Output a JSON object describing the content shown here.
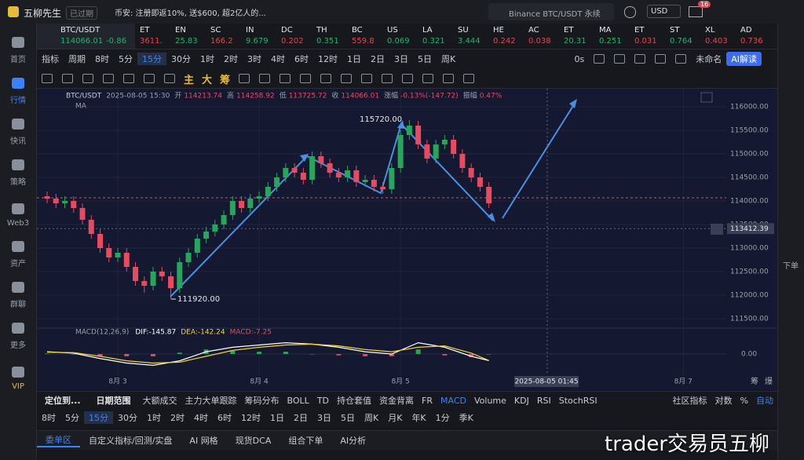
{
  "top_bar": {
    "app_name": "五柳先生",
    "status": "已过期",
    "news": "币安: 注册即返10%, 送$600, 超2亿人的...",
    "search": "Binance BTC/USDT 永续",
    "currency": "USD",
    "badge": "16"
  },
  "sidebar": [
    "首页",
    "行情",
    "快讯",
    "策略",
    "Web3",
    "资产",
    "群聊",
    "更多",
    "VIP"
  ],
  "right_sidebar": [
    "下单"
  ],
  "tickers": [
    {
      "name": "BTC/USDT",
      "price": "114066.01",
      "change": "-0.86",
      "color": "#25b26a"
    },
    {
      "name": "ET",
      "price": "3611.",
      "color": "#e0474c"
    },
    {
      "name": "EN",
      "price": "25.83",
      "color": "#25b26a"
    },
    {
      "name": "SC",
      "price": "166.2",
      "color": "#e0474c"
    },
    {
      "name": "IN",
      "price": "9.679",
      "color": "#25b26a"
    },
    {
      "name": "DC",
      "price": "0.202",
      "color": "#e0474c"
    },
    {
      "name": "TH",
      "price": "0.351",
      "color": "#25b26a"
    },
    {
      "name": "BC",
      "price": "559.8",
      "color": "#e0474c"
    },
    {
      "name": "US",
      "price": "0.069",
      "color": "#25b26a"
    },
    {
      "name": "LA",
      "price": "0.321",
      "color": "#25b26a"
    },
    {
      "name": "SU",
      "price": "3.444",
      "color": "#25b26a"
    },
    {
      "name": "HE",
      "price": "0.242",
      "color": "#e0474c"
    },
    {
      "name": "AC",
      "price": "0.038",
      "color": "#e0474c"
    },
    {
      "name": "ET",
      "price": "20.31",
      "color": "#25b26a"
    },
    {
      "name": "MA",
      "price": "0.251",
      "color": "#25b26a"
    },
    {
      "name": "ET",
      "price": "0.031",
      "color": "#e0474c"
    },
    {
      "name": "ST",
      "price": "0.764",
      "color": "#25b26a"
    },
    {
      "name": "XL",
      "price": "0.403",
      "color": "#e0474c"
    },
    {
      "name": "AD",
      "price": "0.736",
      "color": "#e0474c"
    }
  ],
  "toolbar": {
    "items": [
      "指标",
      "周期",
      "8时",
      "5分",
      "15分",
      "30分",
      "1时",
      "2时",
      "3时",
      "4时",
      "6时",
      "12时",
      "1日",
      "2日",
      "3日",
      "5日",
      "周K"
    ],
    "timer": "0s",
    "layout_name": "未命名",
    "ai": "AI解读"
  },
  "draw_tools": [
    "主",
    "大",
    "筹"
  ],
  "chart_data": {
    "type": "candlestick",
    "symbol": "BTC/USDT",
    "time": "2025-08-05 15:30",
    "info": [
      {
        "label": "开",
        "value": 114213.74
      },
      {
        "label": "高",
        "value": 114258.92
      },
      {
        "label": "低",
        "value": 113725.72
      },
      {
        "label": "收",
        "value": 114066.01
      }
    ],
    "change_label": "涨幅",
    "change": "-0.13%(-147.72)",
    "amplitude_label": "振幅",
    "amplitude": "0.47%",
    "ma_label": "MA",
    "up_color": "#26a65b",
    "down_color": "#e84a5f",
    "x": [
      -12,
      -10.5,
      -9,
      -7.5,
      -6,
      -4.5,
      -3,
      -1.5,
      0,
      1.5,
      3,
      4.5,
      6,
      7.5,
      9,
      10.5,
      12,
      13.5,
      15,
      16.5,
      18,
      19.5,
      21,
      22.5,
      24,
      25.5,
      27,
      28.5,
      30,
      31.5,
      33,
      34.5,
      36,
      37.5,
      39,
      40.5,
      42,
      43.5,
      45,
      46.5,
      48,
      49.5,
      51,
      52.5,
      54,
      55.5,
      57,
      58.5,
      60,
      61.5,
      63
    ],
    "open": [
      114100,
      114050,
      113950,
      114000,
      113850,
      113600,
      113300,
      113000,
      112800,
      112900,
      112600,
      112300,
      112200,
      112500,
      112400,
      112150,
      112700,
      112900,
      113200,
      113350,
      113500,
      113700,
      114000,
      113850,
      114050,
      114100,
      114300,
      114500,
      114700,
      114600,
      114450,
      114950,
      114800,
      114600,
      114500,
      114650,
      114400,
      114450,
      114300,
      114250,
      114700,
      115400,
      115600,
      115200,
      114900,
      115200,
      115300,
      115000,
      114700,
      114500,
      114300
    ],
    "high": [
      114200,
      114150,
      114100,
      114100,
      113950,
      113700,
      113400,
      113100,
      113000,
      113000,
      112700,
      112400,
      112600,
      112600,
      112500,
      112800,
      113000,
      113300,
      113450,
      113600,
      113800,
      114100,
      114100,
      114150,
      114200,
      114400,
      114600,
      114800,
      114800,
      114700,
      115050,
      115050,
      114900,
      114700,
      114750,
      114750,
      114550,
      114550,
      114400,
      114800,
      115500,
      115720,
      115700,
      115300,
      115300,
      115400,
      115400,
      115100,
      114800,
      114600,
      114400
    ],
    "low": [
      113950,
      113850,
      113850,
      113750,
      113500,
      113200,
      112900,
      112700,
      112700,
      112500,
      112200,
      112050,
      112100,
      112300,
      111920,
      112050,
      112600,
      112800,
      113100,
      113250,
      113400,
      113600,
      113750,
      113750,
      113950,
      114000,
      114200,
      114400,
      114500,
      114350,
      114350,
      114700,
      114500,
      114400,
      114400,
      114300,
      114300,
      114200,
      114150,
      114150,
      114600,
      115300,
      115100,
      114800,
      114800,
      115100,
      114900,
      114600,
      114400,
      114200,
      113850
    ],
    "close": [
      114050,
      113950,
      114000,
      113850,
      113600,
      113300,
      113000,
      112800,
      112900,
      112600,
      112300,
      112200,
      112500,
      112400,
      112150,
      112700,
      112900,
      113200,
      113350,
      113500,
      113700,
      114000,
      113850,
      114050,
      114100,
      114300,
      114500,
      114700,
      114600,
      114450,
      114950,
      114800,
      114600,
      114500,
      114650,
      114400,
      114450,
      114300,
      114250,
      114700,
      115400,
      115600,
      115200,
      114900,
      115200,
      115300,
      115000,
      114700,
      114500,
      114300,
      113950
    ],
    "xlim": [
      -12.4,
      103.3
    ],
    "xticks": [
      {
        "value": 0,
        "label": "8月 3"
      },
      {
        "value": 24,
        "label": "8月 4"
      },
      {
        "value": 48,
        "label": "8月 5"
      },
      {
        "value": 96,
        "label": "8月 7"
      }
    ],
    "ylim": [
      111350,
      116350
    ],
    "yticks": [
      {
        "value": 116000,
        "label": "116000.00"
      },
      {
        "value": 115500,
        "label": "115500.00"
      },
      {
        "value": 115000,
        "label": "115000.00"
      },
      {
        "value": 114500,
        "label": "114500.00"
      },
      {
        "value": 114000,
        "label": "114000.00"
      },
      {
        "value": 113500,
        "label": "113500.00"
      },
      {
        "value": 113000,
        "label": "113000.00"
      },
      {
        "value": 112500,
        "label": "112500.00"
      },
      {
        "value": 112000,
        "label": "112000.00"
      },
      {
        "value": 111500,
        "label": "111500.00"
      }
    ],
    "grid": true,
    "crosshair": {
      "value": 113412.39,
      "x_label": "2025-08-05 01:45"
    },
    "annotations": [
      "115720.00",
      "111920.00"
    ],
    "axis_buttons": [
      "筹",
      "爆"
    ]
  },
  "macd": {
    "type": "line",
    "title": "MACD(12,26,9)",
    "legend": [
      {
        "text": "DIF:-145.87",
        "color": "#ffffff"
      },
      {
        "text": "DEA:-142.24",
        "color": "#f5d130"
      },
      {
        "text": "MACD:-7.25",
        "color": "#e84a5f"
      }
    ],
    "x": [
      -12,
      -7.5,
      -3,
      1.5,
      6,
      10.5,
      15,
      19.5,
      24,
      28.5,
      33,
      37.5,
      42,
      46.5,
      51,
      55.5,
      60,
      63
    ],
    "series": [
      {
        "color": "#ffffff",
        "values": [
          50,
          20,
          -100,
          -200,
          -250,
          -150,
          50,
          150,
          200,
          250,
          220,
          150,
          50,
          0,
          250,
          150,
          -50,
          -146
        ]
      },
      {
        "color": "#f5d130",
        "values": [
          40,
          30,
          -50,
          -150,
          -200,
          -180,
          -50,
          80,
          150,
          200,
          220,
          180,
          100,
          50,
          150,
          180,
          20,
          -142
        ]
      }
    ],
    "hist": [
      10,
      -10,
      -50,
      -50,
      -50,
      30,
      100,
      70,
      50,
      50,
      0,
      -30,
      -50,
      -50,
      100,
      -30,
      -70,
      -7
    ],
    "ylim": [
      -400,
      400
    ],
    "yticks": [
      {
        "value": 0,
        "label": "0.00"
      }
    ]
  },
  "bottom_bar": {
    "left": [
      "定位到...",
      "日期范围"
    ],
    "indicators": [
      "大额成交",
      "主力大单跟踪",
      "筹码分布",
      "BOLL",
      "TD",
      "持仓套值",
      "资金背离",
      "FR",
      "MACD",
      "Volume",
      "KDJ",
      "RSI",
      "StochRSI"
    ],
    "right": [
      "社区指标",
      "对数",
      "%",
      "自动"
    ]
  },
  "intervals": [
    "8时",
    "5分",
    "15分",
    "30分",
    "1时",
    "2时",
    "4时",
    "6时",
    "12时",
    "1日",
    "2日",
    "3日",
    "5日",
    "周K",
    "月K",
    "年K",
    "1分",
    "季K"
  ],
  "tabs": [
    "委单区",
    "自定义指标/回测/实盘",
    "AI 网格",
    "现货DCA",
    "组合下单",
    "AI分析"
  ],
  "watermark": "trader交易员五柳"
}
